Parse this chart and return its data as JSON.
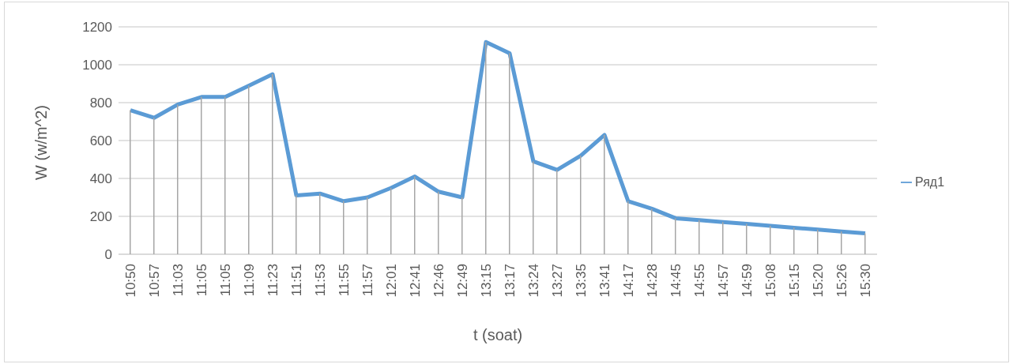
{
  "chart_data": {
    "type": "line",
    "xlabel": "t (soat)",
    "ylabel": "W (w/m^2)",
    "categories": [
      "10:50",
      "10:57",
      "11:03",
      "11:05",
      "11:05",
      "11:09",
      "11:23",
      "11:51",
      "11:53",
      "11:55",
      "11:57",
      "12:01",
      "12:41",
      "12:46",
      "12:49",
      "13:15",
      "13:17",
      "13:24",
      "13:27",
      "13:35",
      "13:41",
      "14:17",
      "14:28",
      "14:45",
      "14:55",
      "14:57",
      "14:59",
      "15:08",
      "15:15",
      "15:20",
      "15:26",
      "15:30"
    ],
    "series": [
      {
        "name": "Ряд1",
        "color": "#5b9bd5",
        "values": [
          760,
          720,
          790,
          830,
          830,
          890,
          950,
          310,
          320,
          280,
          300,
          350,
          410,
          330,
          300,
          1120,
          1060,
          490,
          445,
          520,
          630,
          280,
          240,
          190,
          180,
          170,
          160,
          150,
          140,
          130,
          120,
          110
        ]
      },
      {
        "type": "bar",
        "color": "#a6a6a6",
        "values": [
          760,
          720,
          790,
          830,
          830,
          890,
          950,
          310,
          320,
          280,
          300,
          350,
          410,
          330,
          300,
          1120,
          1060,
          490,
          445,
          520,
          630,
          280,
          240,
          190,
          180,
          170,
          160,
          150,
          140,
          130,
          120,
          110
        ]
      }
    ],
    "ylim": [
      0,
      1200
    ],
    "yticks": [
      0,
      200,
      400,
      600,
      800,
      1000,
      1200
    ],
    "grid": "y",
    "legend": "right",
    "marker": "none"
  }
}
